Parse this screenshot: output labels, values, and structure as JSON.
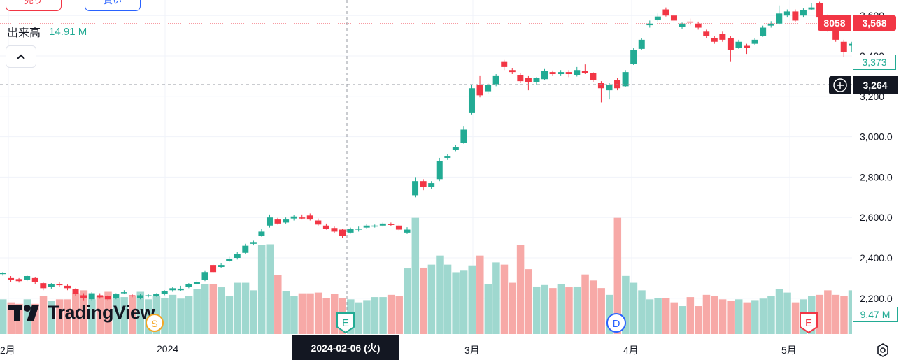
{
  "toolbar": {
    "sell_label": "売り",
    "buy_label": "買い"
  },
  "volume_legend": {
    "label": "出来高",
    "value": "14.91 M"
  },
  "collapse_icon": "chevron-up-icon",
  "price_tags": {
    "symbol": "8058",
    "last": "3,568",
    "sma": "3,373",
    "crosshair": "3,264",
    "volume": "9.47 M"
  },
  "crosshair_date": "2024-02-06 (火)",
  "x_axis_labels": [
    "2月",
    "2024",
    "3月",
    "4月",
    "5月"
  ],
  "logo_text": "TradingView",
  "event_markers": [
    "E",
    "D",
    "E",
    "S"
  ],
  "colors": {
    "up": "#22ab94",
    "down": "#f23645",
    "up_vol": "#9fd8cf",
    "down_vol": "#f7a9a7"
  },
  "chart_data": {
    "type": "candlestick",
    "y_ticks": [
      "3,600",
      "3,400",
      "3,200",
      "3,000.0",
      "2,800.0",
      "2,600.0",
      "2,400.0",
      "2,200.0"
    ],
    "ylim": [
      2100,
      3680
    ],
    "candles": [
      [
        2320,
        2325,
        2330,
        2312
      ],
      [
        2300,
        2290,
        2310,
        2280
      ],
      [
        2295,
        2285,
        2300,
        2278
      ],
      [
        2290,
        2310,
        2315,
        2285
      ],
      [
        2300,
        2280,
        2305,
        2270
      ],
      [
        2275,
        2250,
        2280,
        2240
      ],
      [
        2255,
        2270,
        2275,
        2248
      ],
      [
        2270,
        2265,
        2280,
        2258
      ],
      [
        2262,
        2250,
        2268,
        2240
      ],
      [
        2245,
        2220,
        2250,
        2212
      ],
      [
        2215,
        2200,
        2225,
        2190
      ],
      [
        2195,
        2225,
        2230,
        2190
      ],
      [
        2215,
        2205,
        2225,
        2198
      ],
      [
        2210,
        2195,
        2215,
        2190
      ],
      [
        2200,
        2220,
        2225,
        2195
      ],
      [
        2225,
        2230,
        2240,
        2220
      ],
      [
        2215,
        2210,
        2220,
        2205
      ],
      [
        2200,
        2215,
        2220,
        2195
      ],
      [
        2210,
        2215,
        2222,
        2205
      ],
      [
        2212,
        2220,
        2225,
        2208
      ],
      [
        2220,
        2235,
        2240,
        2215
      ],
      [
        2240,
        2250,
        2258,
        2232
      ],
      [
        2240,
        2248,
        2262,
        2235
      ],
      [
        2255,
        2270,
        2275,
        2250
      ],
      [
        2272,
        2280,
        2290,
        2268
      ],
      [
        2290,
        2330,
        2335,
        2285
      ],
      [
        2365,
        2330,
        2370,
        2325
      ],
      [
        2355,
        2365,
        2375,
        2350
      ],
      [
        2385,
        2395,
        2405,
        2380
      ],
      [
        2400,
        2420,
        2430,
        2392
      ],
      [
        2425,
        2460,
        2470,
        2420
      ],
      [
        2470,
        2475,
        2485,
        2462
      ],
      [
        2510,
        2530,
        2545,
        2505
      ],
      [
        2560,
        2600,
        2615,
        2550
      ],
      [
        2590,
        2570,
        2598,
        2565
      ],
      [
        2575,
        2590,
        2600,
        2570
      ],
      [
        2595,
        2605,
        2612,
        2585
      ],
      [
        2600,
        2595,
        2615,
        2590
      ],
      [
        2610,
        2590,
        2620,
        2585
      ],
      [
        2585,
        2565,
        2595,
        2560
      ],
      [
        2560,
        2545,
        2570,
        2540
      ],
      [
        2548,
        2530,
        2555,
        2522
      ],
      [
        2540,
        2510,
        2545,
        2500
      ],
      [
        2525,
        2545,
        2550,
        2520
      ],
      [
        2540,
        2545,
        2555,
        2530
      ],
      [
        2550,
        2560,
        2568,
        2545
      ],
      [
        2555,
        2560,
        2565,
        2550
      ],
      [
        2560,
        2570,
        2575,
        2555
      ],
      [
        2568,
        2565,
        2575,
        2558
      ],
      [
        2560,
        2540,
        2565,
        2535
      ],
      [
        2525,
        2540,
        2552,
        2518
      ],
      [
        2710,
        2780,
        2800,
        2700
      ],
      [
        2780,
        2750,
        2790,
        2735
      ],
      [
        2750,
        2770,
        2780,
        2740
      ],
      [
        2790,
        2880,
        2895,
        2780
      ],
      [
        2895,
        2905,
        2915,
        2885
      ],
      [
        2935,
        2950,
        2960,
        2928
      ],
      [
        2970,
        3035,
        3050,
        2965
      ],
      [
        3120,
        3240,
        3260,
        3110
      ],
      [
        3255,
        3205,
        3300,
        3195
      ],
      [
        3225,
        3255,
        3265,
        3210
      ],
      [
        3260,
        3300,
        3310,
        3250
      ],
      [
        3370,
        3345,
        3380,
        3330
      ],
      [
        3330,
        3320,
        3340,
        3310
      ],
      [
        3305,
        3275,
        3315,
        3265
      ],
      [
        3290,
        3270,
        3300,
        3230
      ],
      [
        3270,
        3290,
        3295,
        3255
      ],
      [
        3285,
        3325,
        3335,
        3280
      ],
      [
        3320,
        3310,
        3328,
        3300
      ],
      [
        3310,
        3320,
        3330,
        3300
      ],
      [
        3320,
        3310,
        3330,
        3295
      ],
      [
        3305,
        3330,
        3345,
        3298
      ],
      [
        3325,
        3315,
        3358,
        3310
      ],
      [
        3315,
        3280,
        3320,
        3270
      ],
      [
        3265,
        3240,
        3275,
        3170
      ],
      [
        3230,
        3255,
        3265,
        3185
      ],
      [
        3280,
        3240,
        3290,
        3230
      ],
      [
        3250,
        3320,
        3330,
        3245
      ],
      [
        3360,
        3430,
        3440,
        3355
      ],
      [
        3435,
        3480,
        3490,
        3430
      ],
      [
        3552,
        3560,
        3575,
        3540
      ],
      [
        3580,
        3595,
        3610,
        3570
      ],
      [
        3630,
        3600,
        3640,
        3595
      ],
      [
        3600,
        3575,
        3610,
        3560
      ],
      [
        3545,
        3560,
        3565,
        3535
      ],
      [
        3570,
        3565,
        3585,
        3550
      ],
      [
        3560,
        3540,
        3570,
        3530
      ],
      [
        3520,
        3500,
        3530,
        3490
      ],
      [
        3490,
        3470,
        3500,
        3460
      ],
      [
        3510,
        3480,
        3520,
        3470
      ],
      [
        3490,
        3430,
        3500,
        3370
      ],
      [
        3440,
        3470,
        3480,
        3435
      ],
      [
        3450,
        3440,
        3460,
        3410
      ],
      [
        3460,
        3480,
        3490,
        3455
      ],
      [
        3500,
        3540,
        3550,
        3495
      ],
      [
        3550,
        3560,
        3572,
        3540
      ],
      [
        3560,
        3610,
        3650,
        3555
      ],
      [
        3600,
        3620,
        3630,
        3590
      ],
      [
        3620,
        3575,
        3630,
        3570
      ],
      [
        3600,
        3625,
        3635,
        3590
      ],
      [
        3630,
        3640,
        3660,
        3625
      ],
      [
        3660,
        3590,
        3668,
        3585
      ],
      [
        3600,
        3525,
        3605,
        3520
      ],
      [
        3545,
        3480,
        3550,
        3470
      ],
      [
        3470,
        3420,
        3480,
        3395
      ],
      [
        3450,
        3460,
        3470,
        3420
      ],
      [
        3470,
        3490,
        3500,
        3460
      ],
      [
        3495,
        3520,
        3530,
        3490
      ],
      [
        3510,
        3525,
        3535,
        3500
      ],
      [
        3535,
        3495,
        3540,
        3485
      ],
      [
        3510,
        3560,
        3570,
        3505
      ],
      [
        3550,
        3530,
        3580,
        3520
      ],
      [
        3520,
        3540,
        3555,
        3510
      ],
      [
        3590,
        3610,
        3645,
        3585
      ],
      [
        3620,
        3650,
        3680,
        3610
      ],
      [
        3630,
        3570,
        3660,
        3560
      ],
      [
        3570,
        3480,
        3590,
        3410
      ],
      [
        3425,
        3280,
        3435,
        3270
      ],
      [
        3300,
        3275,
        3320,
        3265
      ],
      [
        3320,
        3360,
        3390,
        3315
      ],
      [
        3365,
        3373,
        3385,
        3355
      ]
    ],
    "volumes": [
      4.6,
      4.2,
      4.0,
      4.6,
      4.0,
      5.0,
      4.4,
      4.6,
      4.6,
      5.4,
      5.8,
      4.6,
      5.0,
      5.6,
      4.8,
      4.9,
      5.0,
      5.6,
      4.6,
      5.0,
      4.8,
      5.2,
      4.7,
      5.0,
      6.0,
      6.6,
      6.6,
      6.2,
      5.0,
      6.8,
      6.8,
      5.8,
      11.8,
      11.9,
      7.8,
      5.7,
      5.0,
      5.4,
      5.4,
      5.5,
      4.8,
      5.3,
      4.8,
      4.6,
      4.2,
      4.5,
      4.9,
      4.9,
      5.2,
      5.0,
      8.7,
      15.4,
      8.8,
      9.2,
      10.4,
      9.2,
      8.2,
      8.4,
      9.1,
      10.4,
      6.6,
      9.5,
      9.2,
      6.8,
      11.8,
      8.6,
      6.3,
      6.5,
      6.1,
      6.6,
      6.2,
      6.3,
      7.9,
      7.1,
      6.1,
      5.2,
      15.4,
      7.7,
      6.8,
      5.8,
      4.6,
      4.8,
      4.8,
      4.2,
      3.7,
      4.9,
      3.7,
      5.2,
      5.0,
      4.6,
      4.4,
      4.6,
      4.2,
      4.5,
      4.7,
      5.0,
      6.0,
      5.5,
      4.2,
      4.6,
      5.0,
      5.2,
      5.8,
      5.2,
      5.0,
      5.8,
      4.4,
      5.6,
      4.6,
      5.3,
      4.5,
      4.3,
      4.8,
      6.3,
      4.6,
      14.9,
      11.0,
      9.4,
      5.4,
      5.2,
      4.4
    ]
  }
}
